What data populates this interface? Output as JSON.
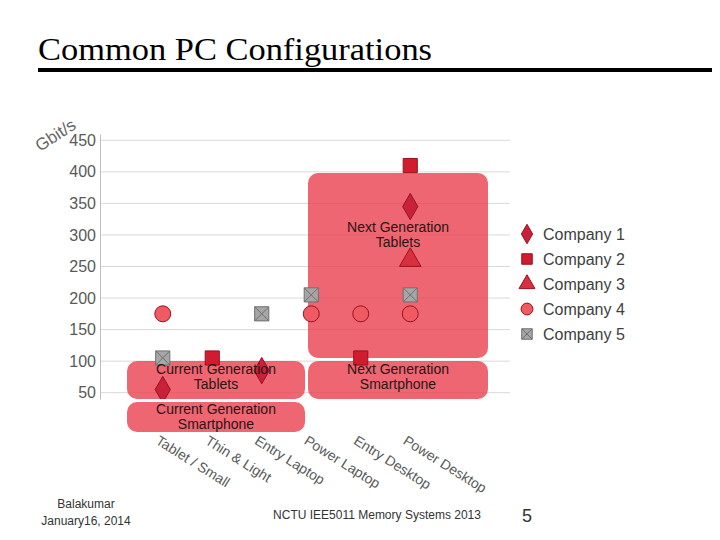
{
  "chart_data": {
    "type": "scatter",
    "title": "Common PC Configurations",
    "y_label": "Gbit/s",
    "categories": [
      "Tablet / Small",
      "Thin & Light",
      "Entry Laptop",
      "Power Laptop",
      "Entry Desktop",
      "Power Desktop"
    ],
    "series": [
      {
        "name": "Company 1",
        "color": "#c8223a",
        "marker": "diamond",
        "values": [
          55,
          null,
          85,
          null,
          null,
          345
        ]
      },
      {
        "name": "Company 2",
        "color": "#d01c2c",
        "marker": "square",
        "values": [
          null,
          105,
          null,
          null,
          105,
          410
        ]
      },
      {
        "name": "Company 3",
        "color": "#d83040",
        "marker": "triangle",
        "values": [
          null,
          null,
          null,
          null,
          null,
          260
        ]
      },
      {
        "name": "Company 4",
        "color": "#ef5b60",
        "marker": "circle",
        "values": [
          175,
          null,
          null,
          175,
          175,
          175
        ]
      },
      {
        "name": "Company 5",
        "color": "#a6a6a6",
        "marker": "square-x",
        "values": [
          105,
          null,
          175,
          205,
          null,
          205
        ]
      }
    ],
    "ylim": [
      40,
      460
    ],
    "yticks": [
      50,
      100,
      150,
      200,
      250,
      300,
      350,
      400,
      450
    ],
    "grid": true,
    "legend": "right",
    "annotations": [
      "Current Generation\nTablets",
      "Current Generation\nSmartphone",
      "Next Generation\nTablets",
      "Next Generation\nSmartphone"
    ]
  },
  "footer": {
    "author": "Balakumar",
    "date": "January16, 2014",
    "course": "NCTU IEE5011 Memory Systems 2013",
    "page": 5
  }
}
